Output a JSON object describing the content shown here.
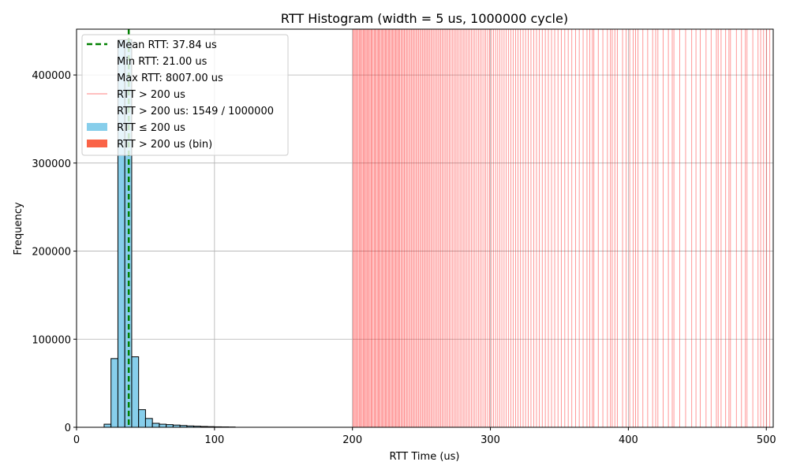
{
  "chart_data": {
    "type": "bar",
    "title": "RTT Histogram (width = 5 us, 1000000 cycle)",
    "xlabel": "RTT Time (us)",
    "ylabel": "Frequency",
    "xlim": [
      0,
      505
    ],
    "ylim": [
      0,
      452000
    ],
    "xticks": [
      0,
      100,
      200,
      300,
      400,
      500
    ],
    "yticks": [
      0,
      100000,
      200000,
      300000,
      400000
    ],
    "grid": true,
    "legend_position": "top-left",
    "bin_width": 5,
    "bins": [
      {
        "x": 20,
        "value": 3500
      },
      {
        "x": 25,
        "value": 78000
      },
      {
        "x": 30,
        "value": 440000
      },
      {
        "x": 35,
        "value": 440000
      },
      {
        "x": 40,
        "value": 80000
      },
      {
        "x": 45,
        "value": 20000
      },
      {
        "x": 50,
        "value": 10000
      },
      {
        "x": 55,
        "value": 4500
      },
      {
        "x": 60,
        "value": 3500
      },
      {
        "x": 65,
        "value": 3000
      },
      {
        "x": 70,
        "value": 2500
      },
      {
        "x": 75,
        "value": 2000
      },
      {
        "x": 80,
        "value": 1500
      },
      {
        "x": 85,
        "value": 1200
      },
      {
        "x": 90,
        "value": 900
      },
      {
        "x": 95,
        "value": 700
      },
      {
        "x": 100,
        "value": 500
      },
      {
        "x": 105,
        "value": 400
      },
      {
        "x": 110,
        "value": 300
      }
    ],
    "mean_rtt": 37.84,
    "outlier_positions": [
      200.5,
      201.2,
      201.9,
      202.6,
      203.4,
      204.1,
      204.9,
      205.5,
      206.3,
      207.0,
      207.8,
      208.4,
      209.2,
      209.9,
      210.6,
      211.3,
      212.1,
      212.8,
      213.6,
      214.2,
      215.0,
      215.8,
      216.5,
      217.2,
      218.0,
      218.7,
      219.4,
      220.1,
      220.9,
      221.6,
      222.4,
      223.1,
      223.9,
      224.6,
      225.3,
      226.1,
      226.8,
      227.6,
      228.3,
      229.1,
      229.8,
      230.6,
      231.3,
      232.1,
      232.8,
      233.6,
      234.3,
      235.2,
      236.0,
      236.8,
      237.6,
      238.4,
      239.3,
      240.1,
      241.0,
      241.9,
      242.7,
      243.6,
      244.4,
      245.3,
      246.2,
      247.1,
      248.0,
      248.9,
      249.8,
      250.7,
      251.6,
      252.5,
      253.4,
      254.3,
      255.2,
      256.1,
      257.1,
      258.0,
      259.0,
      260.0,
      261.0,
      262.0,
      263.0,
      264.0,
      265.0,
      266.0,
      267.1,
      268.1,
      269.2,
      270.2,
      271.3,
      272.4,
      273.5,
      274.6,
      275.7,
      276.8,
      278.0,
      279.1,
      280.3,
      281.4,
      282.6,
      283.8,
      285.0,
      286.2,
      287.5,
      288.7,
      290.0,
      291.3,
      292.6,
      293.9,
      295.3,
      296.6,
      298.0,
      299.4,
      300.8,
      302.3,
      303.8,
      305.3,
      306.8,
      308.3,
      309.9,
      311.5,
      313.2,
      314.8,
      316.5,
      318.3,
      320.0,
      321.8,
      323.7,
      325.5,
      327.4,
      329.4,
      331.4,
      333.4,
      335.5,
      337.6,
      339.8,
      342.0,
      344.3,
      346.6,
      349.0,
      351.4,
      353.9,
      356.4,
      359.0,
      361.7,
      364.4,
      367.2,
      370.0,
      372.0,
      373.9,
      375.0,
      378.2,
      381.5,
      384.8,
      387.0,
      388.3,
      390.2,
      392.0,
      395.8,
      398.4,
      401.0,
      403.5,
      405.2,
      407.0,
      410.5,
      414.0,
      417.6,
      419.8,
      421.4,
      425.2,
      429.0,
      431.8,
      433.0,
      437.2,
      441.5,
      445.9,
      449.0,
      452.1,
      456.3,
      460.0,
      463.8,
      465.1,
      467.2,
      470.5,
      472.9,
      474.0,
      478.3,
      482.0,
      484.8,
      486.0,
      490.2,
      494.0,
      495.9,
      498.0,
      500.2,
      502.5
    ],
    "legend_entries": [
      {
        "label": "Mean RTT: 37.84 us",
        "symbol": "dash",
        "color": "#008000"
      },
      {
        "label": "Min RTT: 21.00 us",
        "symbol": "none",
        "color": ""
      },
      {
        "label": "Max RTT: 8007.00 us",
        "symbol": "none",
        "color": ""
      },
      {
        "label": "RTT > 200 us",
        "symbol": "thin-line",
        "color": "#ff8080"
      },
      {
        "label": "RTT > 200 us: 1549 / 1000000",
        "symbol": "none",
        "color": ""
      },
      {
        "label": "RTT ≤ 200 us",
        "symbol": "patch",
        "color": "#87ceeb"
      },
      {
        "label": "RTT > 200 us (bin)",
        "symbol": "patch",
        "color": "#fa6347"
      }
    ],
    "colors": {
      "bar_fill": "#87ceeb",
      "bar_edge": "#000000",
      "mean_line": "#008000",
      "outlier_line": "#ff0000",
      "grid": "#b0b0b0"
    }
  }
}
